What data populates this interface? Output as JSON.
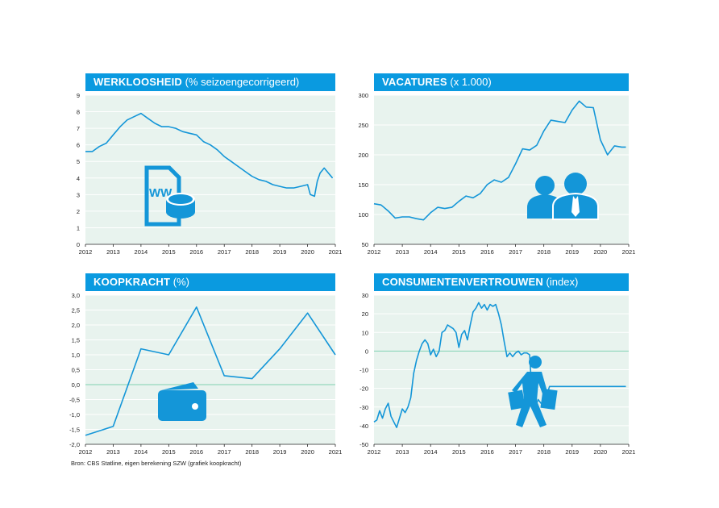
{
  "source_note": "Bron: CBS Statline, eigen berekening SZW (grafiek koopkracht)",
  "colors": {
    "header": "#0a9ae0",
    "plot_bg": "#e8f3ee",
    "grid": "#ffffff",
    "line": "#1496d8",
    "zero": "#7fd0b0",
    "icon": "#1496d8"
  },
  "charts": [
    {
      "title": "WERKLOOSHEID",
      "subtitle": " (% seizoengecorrigeerd)"
    },
    {
      "title": "VACATURES",
      "subtitle": " (x 1.000)"
    },
    {
      "title": "KOOPKRACHT",
      "subtitle": " (%)"
    },
    {
      "title": "CONSUMENTENVERTROUWEN",
      "subtitle": " (index)"
    }
  ],
  "chart_data": [
    {
      "type": "line",
      "title": "WERKLOOSHEID (% seizoengecorrigeerd)",
      "xlim": [
        2012,
        2021
      ],
      "ylim": [
        0,
        9
      ],
      "grid": true,
      "xticks": [
        "2012",
        "2013",
        "2014",
        "2015",
        "2016",
        "2017",
        "2018",
        "2019",
        "2020",
        "2021"
      ],
      "yticks": [
        "0",
        "1",
        "2",
        "3",
        "4",
        "5",
        "6",
        "7",
        "8",
        "9"
      ],
      "icon": "web-money-document-icon",
      "series": [
        {
          "x": [
            2012.0,
            2012.25,
            2012.5,
            2012.75,
            2013.0,
            2013.25,
            2013.5,
            2013.75,
            2014.0,
            2014.25,
            2014.5,
            2014.75,
            2015.0,
            2015.25,
            2015.5,
            2015.75,
            2016.0,
            2016.25,
            2016.5,
            2016.75,
            2017.0,
            2017.25,
            2017.5,
            2017.75,
            2018.0,
            2018.25,
            2018.5,
            2018.75,
            2019.0,
            2019.25,
            2019.5,
            2019.75,
            2020.0,
            2020.1,
            2020.25,
            2020.35,
            2020.45,
            2020.6,
            2020.75,
            2020.9
          ],
          "y": [
            5.6,
            5.6,
            5.9,
            6.1,
            6.6,
            7.1,
            7.5,
            7.7,
            7.9,
            7.6,
            7.3,
            7.1,
            7.1,
            7.0,
            6.8,
            6.7,
            6.6,
            6.2,
            6.0,
            5.7,
            5.3,
            5.0,
            4.7,
            4.4,
            4.1,
            3.9,
            3.8,
            3.6,
            3.5,
            3.4,
            3.4,
            3.5,
            3.6,
            3.0,
            2.9,
            3.8,
            4.3,
            4.6,
            4.3,
            4.0
          ]
        }
      ]
    },
    {
      "type": "line",
      "title": "VACATURES (x 1.000)",
      "xlim": [
        2012,
        2021
      ],
      "ylim": [
        50,
        300
      ],
      "grid": true,
      "xticks": [
        "2012",
        "2013",
        "2014",
        "2015",
        "2016",
        "2017",
        "2018",
        "2019",
        "2020",
        "2021"
      ],
      "yticks": [
        "50",
        "100",
        "150",
        "200",
        "250",
        "300"
      ],
      "icon": "people-group-icon",
      "series": [
        {
          "x": [
            2012.0,
            2012.25,
            2012.5,
            2012.75,
            2013.0,
            2013.25,
            2013.5,
            2013.75,
            2014.0,
            2014.25,
            2014.5,
            2014.75,
            2015.0,
            2015.25,
            2015.5,
            2015.75,
            2016.0,
            2016.25,
            2016.5,
            2016.75,
            2017.0,
            2017.25,
            2017.5,
            2017.75,
            2018.0,
            2018.25,
            2018.5,
            2018.75,
            2019.0,
            2019.25,
            2019.5,
            2019.75,
            2020.0,
            2020.25,
            2020.5,
            2020.75,
            2020.9
          ],
          "y": [
            118,
            116,
            106,
            94,
            96,
            96,
            93,
            91,
            103,
            112,
            110,
            112,
            122,
            131,
            128,
            135,
            150,
            158,
            154,
            162,
            185,
            210,
            208,
            216,
            240,
            258,
            256,
            254,
            275,
            290,
            280,
            279,
            225,
            200,
            215,
            213,
            213
          ]
        }
      ]
    },
    {
      "type": "line",
      "title": "KOOPKRACHT (%)",
      "xlim": [
        2012,
        2021
      ],
      "ylim": [
        -2.0,
        3.0
      ],
      "grid": true,
      "zero_line": true,
      "xticks": [
        "2012",
        "2013",
        "2014",
        "2015",
        "2016",
        "2017",
        "2018",
        "2019",
        "2020",
        "2021"
      ],
      "yticks": [
        "-2,0",
        "-1,5",
        "-1,0",
        "-0,5",
        "0,0",
        "0,5",
        "1,0",
        "1,5",
        "2,0",
        "2,5",
        "3,0"
      ],
      "icon": "wallet-icon",
      "series": [
        {
          "x": [
            2012,
            2013,
            2014,
            2015,
            2016,
            2017,
            2018,
            2019,
            2020,
            2021
          ],
          "y": [
            -1.7,
            -1.4,
            1.2,
            1.0,
            2.6,
            0.3,
            0.2,
            1.2,
            2.4,
            1.0
          ]
        }
      ]
    },
    {
      "type": "line",
      "title": "CONSUMENTENVERTROUWEN (index)",
      "xlim": [
        2012,
        2021
      ],
      "ylim": [
        -50,
        30
      ],
      "grid": true,
      "zero_line": true,
      "xticks": [
        "2012",
        "2013",
        "2014",
        "2015",
        "2016",
        "2017",
        "2018",
        "2019",
        "2020",
        "2021"
      ],
      "yticks": [
        "-50",
        "-40",
        "-30",
        "-20",
        "-10",
        "0",
        "10",
        "20",
        "30"
      ],
      "icon": "shopper-icon",
      "series": [
        {
          "x": [
            2012.0,
            2012.1,
            2012.2,
            2012.3,
            2012.4,
            2012.5,
            2012.6,
            2012.7,
            2012.8,
            2012.9,
            2013.0,
            2013.1,
            2013.2,
            2013.3,
            2013.4,
            2013.5,
            2013.6,
            2013.7,
            2013.8,
            2013.9,
            2014.0,
            2014.1,
            2014.2,
            2014.3,
            2014.4,
            2014.5,
            2014.6,
            2014.7,
            2014.8,
            2014.9,
            2015.0,
            2015.1,
            2015.2,
            2015.3,
            2015.4,
            2015.5,
            2015.6,
            2015.7,
            2015.8,
            2015.9,
            2016.0,
            2016.1,
            2016.2,
            2016.3,
            2016.4,
            2016.5,
            2016.6,
            2016.7,
            2016.8,
            2016.9,
            2017.0,
            2017.1,
            2017.2,
            2017.3,
            2017.4,
            2017.5,
            2017.6,
            2017.7,
            2017.8,
            2017.9,
            2018.0,
            2018.1,
            2018.2,
            2018.3,
            2018.4,
            2018.5,
            2018.6,
            2018.7,
            2018.8,
            2018.9,
            2019.0,
            2019.1,
            2019.2,
            2019.3,
            2019.4,
            2019.5,
            2019.6,
            2019.7,
            2019.8,
            2019.9,
            2020.0,
            2020.1,
            2020.2,
            2020.3,
            2020.4,
            2020.5,
            2020.6,
            2020.7,
            2020.8,
            2020.9
          ],
          "y": [
            -38,
            -37,
            -32,
            -36,
            -31,
            -28,
            -35,
            -38,
            -41,
            -36,
            -31,
            -33,
            -30,
            -25,
            -12,
            -5,
            0,
            4,
            6,
            4,
            -2,
            1,
            -3,
            0,
            10,
            11,
            14,
            13,
            12,
            10,
            2,
            9,
            11,
            6,
            14,
            21,
            23,
            26,
            23,
            25,
            22,
            25,
            24,
            25,
            20,
            14,
            5,
            -3,
            -1,
            -3,
            -1,
            0,
            -2,
            -1,
            -1,
            -2,
            -28,
            -30,
            -26,
            -28,
            -29,
            -24,
            -19,
            -19,
            -19,
            -19,
            -19,
            -19,
            -19,
            -19,
            -19,
            -19,
            -19,
            -19,
            -19,
            -19,
            -19,
            -19,
            -19,
            -19,
            -19,
            -19,
            -19,
            -19,
            -19,
            -19,
            -19,
            -19,
            -19,
            -19
          ]
        }
      ]
    }
  ]
}
